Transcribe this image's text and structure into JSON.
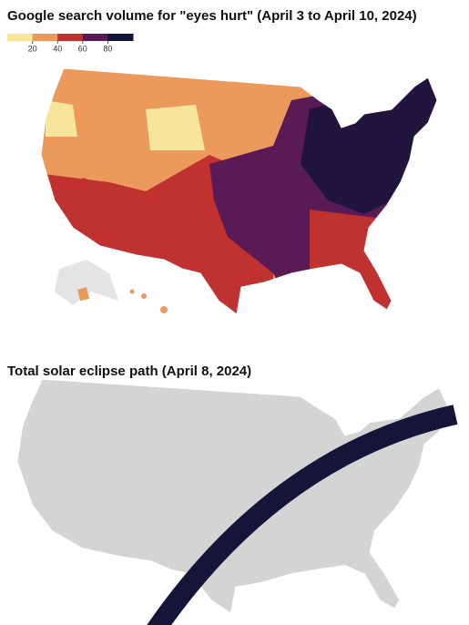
{
  "top_map": {
    "title": "Google search volume for \"eyes hurt\" (April 3 to April 10, 2024)",
    "legend": {
      "lim": [
        0,
        100
      ],
      "ticks": [
        20,
        40,
        60,
        80
      ],
      "colors": [
        "#f6e59a",
        "#ec9a5c",
        "#bf3230",
        "#5a1a56",
        "#15153a"
      ]
    }
  },
  "bottom_map": {
    "title": "Total solar eclipse path (April 8, 2024)"
  }
}
